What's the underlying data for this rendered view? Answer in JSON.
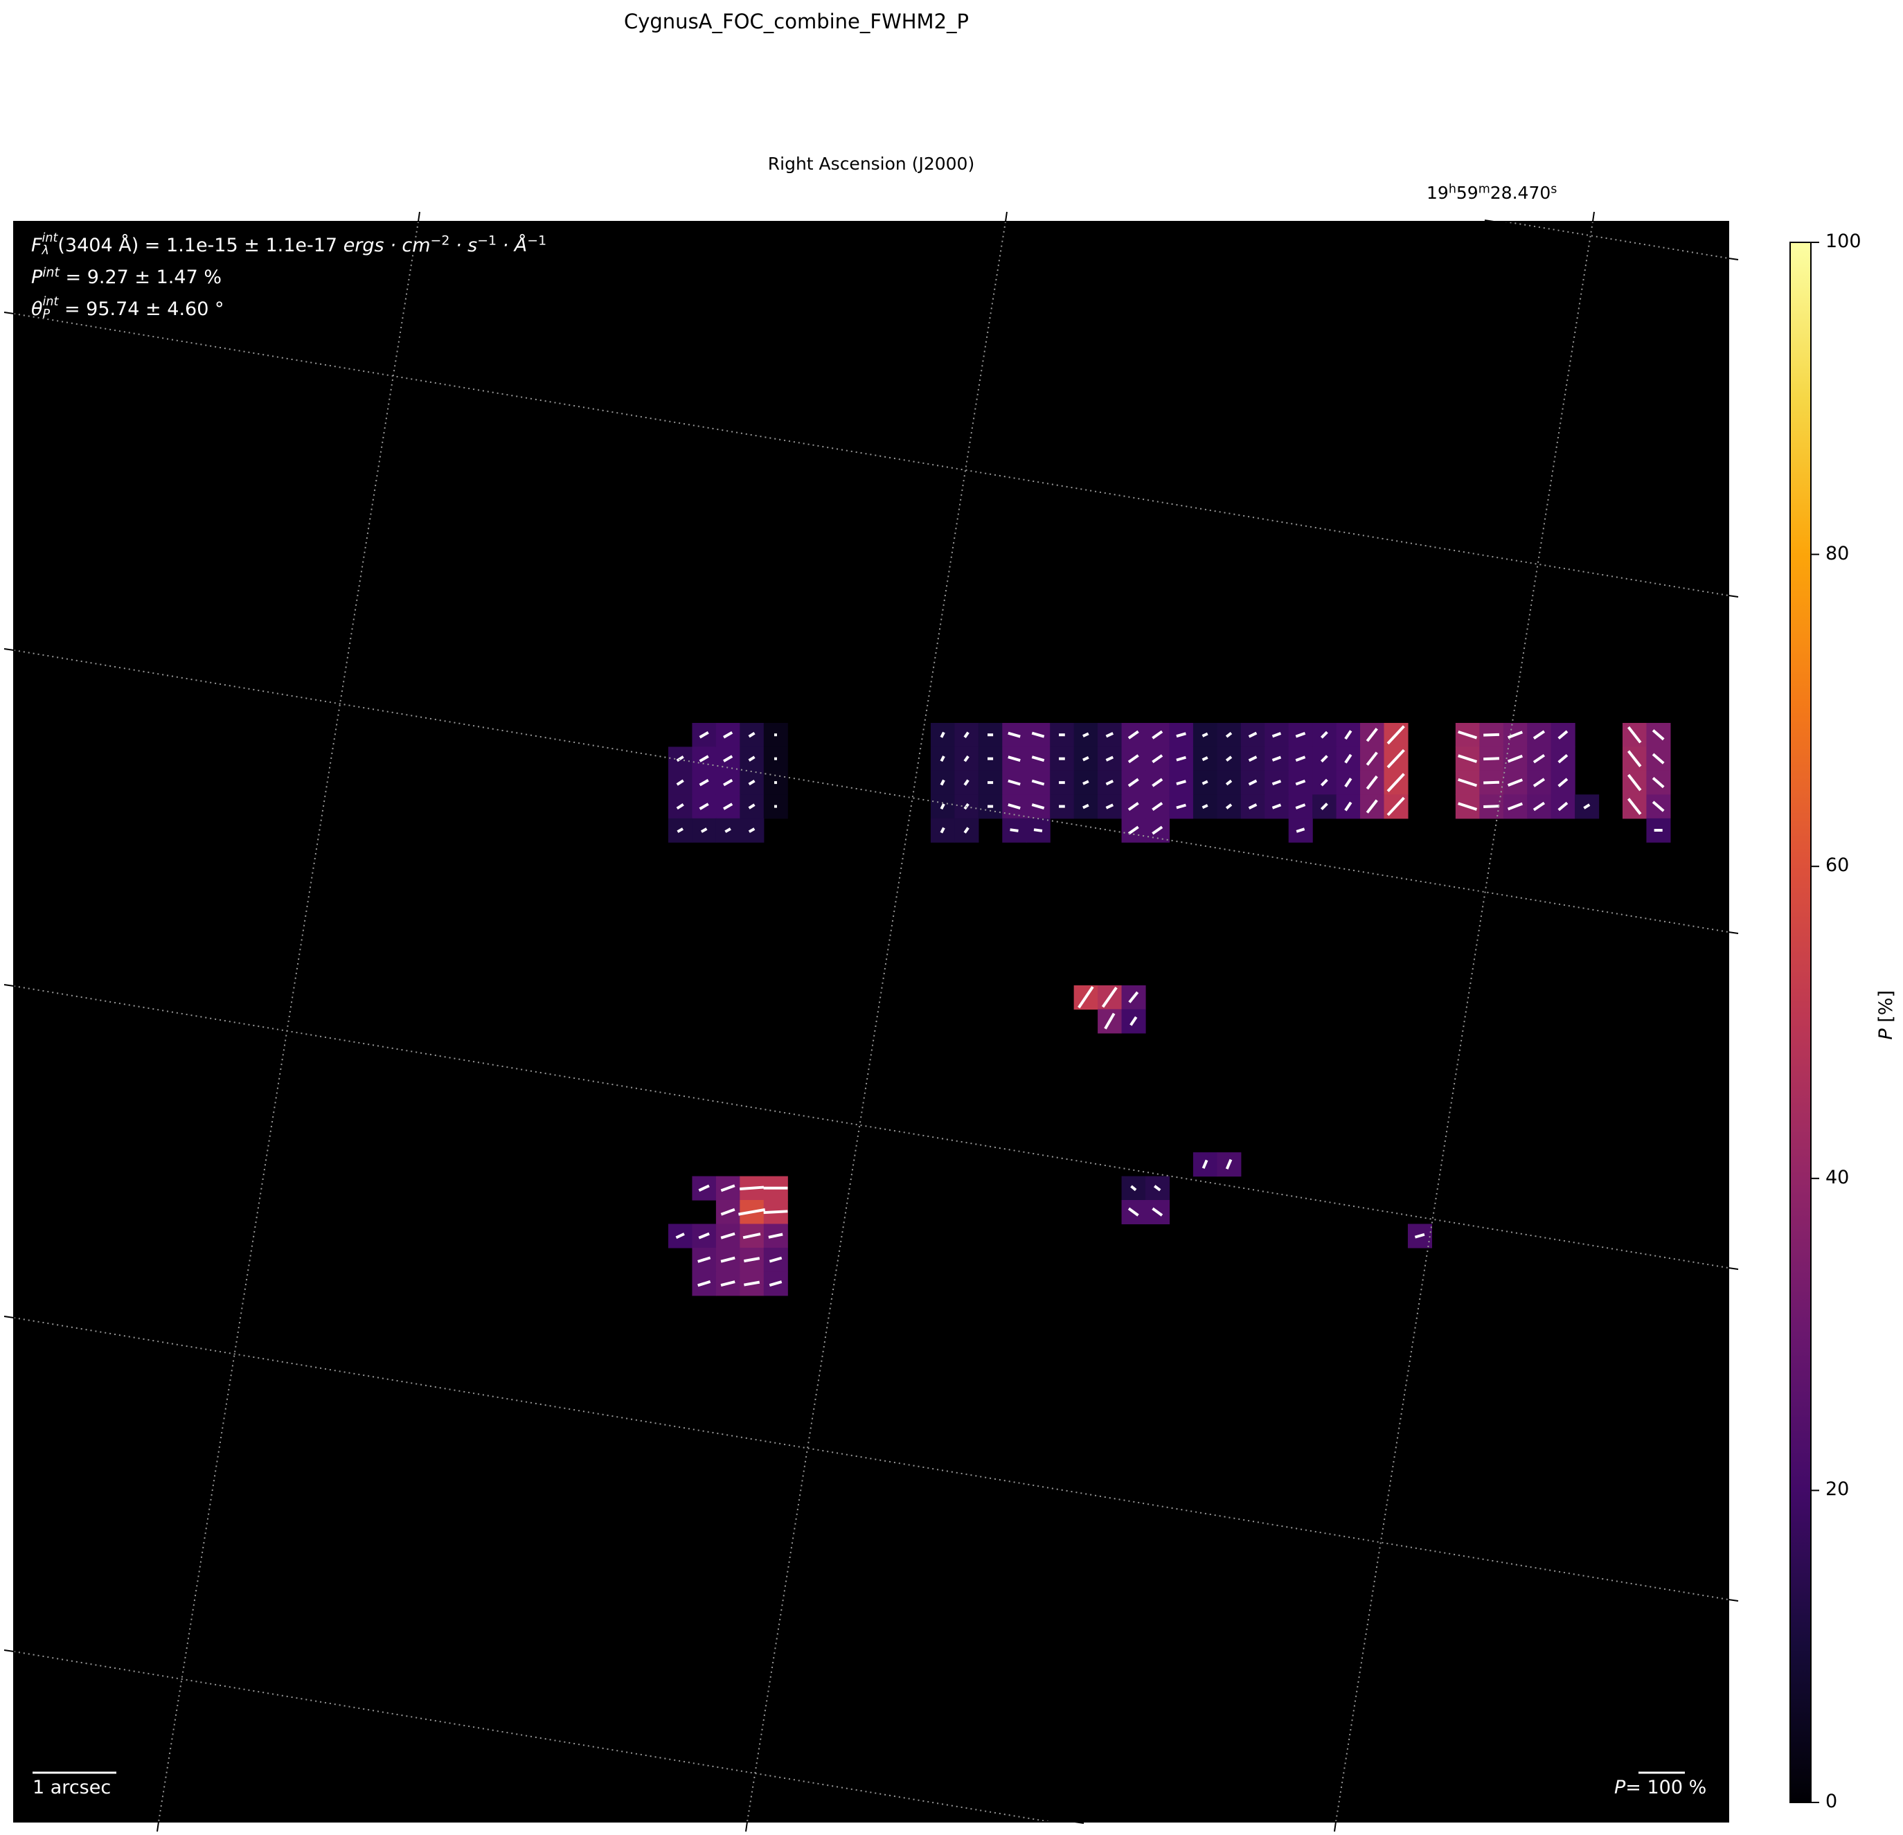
{
  "title": "CygnusA_FOC_combine_FWHM2_P",
  "axes": {
    "xlabel": "Right Ascension (J2000)",
    "x_tick_label": {
      "h": "19",
      "h_unit": "h",
      "m": "59",
      "m_unit": "m",
      "s": "28.470",
      "s_unit": "s"
    },
    "grid": "dotted-gray",
    "background": "#000000"
  },
  "info": {
    "flux": {
      "symbol": "F",
      "sup": "int",
      "sub": "λ",
      "text": "(3404 Å) = 1.1e-15 ± 1.1e-17 ",
      "units": "ergs · cm",
      "exp1": "−2",
      "s": " · s",
      "exp2": "−1",
      "A": " · Å",
      "exp3": "−1"
    },
    "pol": {
      "symbol": "P",
      "sup": "int",
      "text": " = 9.27 ± 1.47 %"
    },
    "angle": {
      "symbol": "θ",
      "sup": "int",
      "sub": "P",
      "text": " = 95.74 ± 4.60 °"
    }
  },
  "scalebar_left": "1 arcsec",
  "scalebar_right": {
    "symbol": "P",
    "text": "= 100 %"
  },
  "colorbar": {
    "label_symbol": "P",
    "label_unit": " [%]",
    "colormap": "inferno",
    "range": [
      0,
      100
    ],
    "ticks": [
      "0",
      "20",
      "40",
      "60",
      "80",
      "100"
    ]
  },
  "chart_data": {
    "type": "heatmap",
    "title": "CygnusA_FOC_combine_FWHM2_P",
    "xlabel": "Right Ascension (J2000)",
    "colorbar_label": "P [%]",
    "value_range": [
      0,
      100
    ],
    "vector_overlay": "polarization vectors (white), length scale P = 100 %",
    "cell_fields": [
      "pixel_col",
      "pixel_row",
      "P_percent",
      "vector_angle_deg",
      "vector_P_percent"
    ],
    "cells": [
      [
        1,
        0,
        18,
        30,
        21
      ],
      [
        2,
        0,
        20,
        30,
        21
      ],
      [
        3,
        0,
        12,
        32,
        14
      ],
      [
        4,
        0,
        4,
        0,
        3
      ],
      [
        0,
        1,
        16,
        33,
        16
      ],
      [
        1,
        1,
        20,
        30,
        21
      ],
      [
        2,
        1,
        20,
        30,
        21
      ],
      [
        3,
        1,
        12,
        32,
        14
      ],
      [
        4,
        1,
        4,
        0,
        3
      ],
      [
        0,
        2,
        16,
        33,
        16
      ],
      [
        1,
        2,
        20,
        30,
        21
      ],
      [
        2,
        2,
        20,
        30,
        21
      ],
      [
        3,
        2,
        12,
        32,
        14
      ],
      [
        4,
        2,
        4,
        0,
        3
      ],
      [
        0,
        3,
        16,
        33,
        16
      ],
      [
        1,
        3,
        20,
        30,
        21
      ],
      [
        2,
        3,
        20,
        30,
        21
      ],
      [
        3,
        3,
        12,
        32,
        14
      ],
      [
        4,
        3,
        4,
        0,
        3
      ],
      [
        0,
        4,
        12,
        30,
        13
      ],
      [
        1,
        4,
        12,
        30,
        13
      ],
      [
        2,
        4,
        12,
        30,
        13
      ],
      [
        3,
        4,
        12,
        30,
        13
      ],
      [
        11,
        0,
        11,
        63,
        12
      ],
      [
        12,
        0,
        13,
        55,
        13
      ],
      [
        13,
        0,
        11,
        0,
        12
      ],
      [
        14,
        0,
        24,
        -16,
        27
      ],
      [
        15,
        0,
        24,
        -16,
        27
      ],
      [
        16,
        0,
        13,
        0,
        13
      ],
      [
        17,
        0,
        10,
        25,
        13
      ],
      [
        18,
        0,
        13,
        25,
        16
      ],
      [
        19,
        0,
        23,
        35,
        25
      ],
      [
        20,
        0,
        23,
        35,
        25
      ],
      [
        21,
        0,
        20,
        16,
        21
      ],
      [
        22,
        0,
        10,
        25,
        12
      ],
      [
        23,
        0,
        11,
        38,
        13
      ],
      [
        24,
        0,
        15,
        26,
        18
      ],
      [
        25,
        0,
        17,
        20,
        19
      ],
      [
        26,
        0,
        19,
        20,
        21
      ],
      [
        27,
        0,
        19,
        45,
        17
      ],
      [
        28,
        0,
        21,
        56,
        21
      ],
      [
        29,
        0,
        34,
        52,
        34
      ],
      [
        30,
        0,
        52,
        47,
        51
      ],
      [
        11,
        1,
        11,
        63,
        12
      ],
      [
        12,
        1,
        13,
        55,
        13
      ],
      [
        13,
        1,
        11,
        0,
        12
      ],
      [
        14,
        1,
        24,
        -16,
        27
      ],
      [
        15,
        1,
        24,
        -16,
        27
      ],
      [
        16,
        1,
        13,
        0,
        13
      ],
      [
        17,
        1,
        10,
        25,
        13
      ],
      [
        18,
        1,
        13,
        25,
        16
      ],
      [
        19,
        1,
        23,
        35,
        25
      ],
      [
        20,
        1,
        23,
        35,
        25
      ],
      [
        21,
        1,
        20,
        16,
        21
      ],
      [
        22,
        1,
        10,
        25,
        12
      ],
      [
        23,
        1,
        11,
        38,
        13
      ],
      [
        24,
        1,
        15,
        26,
        18
      ],
      [
        25,
        1,
        17,
        20,
        19
      ],
      [
        26,
        1,
        19,
        20,
        21
      ],
      [
        27,
        1,
        19,
        45,
        17
      ],
      [
        28,
        1,
        21,
        56,
        21
      ],
      [
        29,
        1,
        34,
        52,
        34
      ],
      [
        30,
        1,
        52,
        47,
        51
      ],
      [
        11,
        2,
        11,
        63,
        12
      ],
      [
        12,
        2,
        13,
        55,
        13
      ],
      [
        13,
        2,
        11,
        0,
        12
      ],
      [
        14,
        2,
        24,
        -16,
        27
      ],
      [
        15,
        2,
        24,
        -16,
        27
      ],
      [
        16,
        2,
        13,
        0,
        13
      ],
      [
        17,
        2,
        10,
        25,
        13
      ],
      [
        18,
        2,
        13,
        25,
        16
      ],
      [
        19,
        2,
        23,
        35,
        25
      ],
      [
        20,
        2,
        23,
        35,
        25
      ],
      [
        21,
        2,
        20,
        16,
        21
      ],
      [
        22,
        2,
        10,
        25,
        12
      ],
      [
        23,
        2,
        11,
        38,
        13
      ],
      [
        24,
        2,
        15,
        26,
        18
      ],
      [
        25,
        2,
        17,
        20,
        19
      ],
      [
        26,
        2,
        19,
        20,
        21
      ],
      [
        27,
        2,
        19,
        45,
        17
      ],
      [
        28,
        2,
        21,
        56,
        21
      ],
      [
        29,
        2,
        34,
        52,
        34
      ],
      [
        30,
        2,
        52,
        47,
        51
      ],
      [
        11,
        3,
        11,
        63,
        12
      ],
      [
        12,
        3,
        13,
        55,
        13
      ],
      [
        13,
        3,
        11,
        0,
        12
      ],
      [
        14,
        3,
        24,
        -16,
        27
      ],
      [
        15,
        3,
        24,
        -16,
        27
      ],
      [
        16,
        3,
        13,
        0,
        13
      ],
      [
        17,
        3,
        10,
        25,
        13
      ],
      [
        18,
        3,
        13,
        25,
        16
      ],
      [
        19,
        3,
        23,
        35,
        25
      ],
      [
        20,
        3,
        23,
        35,
        25
      ],
      [
        21,
        3,
        20,
        16,
        21
      ],
      [
        22,
        3,
        10,
        25,
        12
      ],
      [
        23,
        3,
        11,
        38,
        13
      ],
      [
        24,
        3,
        15,
        26,
        18
      ],
      [
        25,
        3,
        17,
        20,
        19
      ],
      [
        26,
        3,
        19,
        20,
        21
      ],
      [
        27,
        3,
        14,
        45,
        17
      ],
      [
        28,
        3,
        21,
        56,
        21
      ],
      [
        29,
        3,
        34,
        52,
        34
      ],
      [
        30,
        3,
        50,
        47,
        51
      ],
      [
        11,
        4,
        12,
        63,
        12
      ],
      [
        12,
        4,
        12,
        55,
        13
      ],
      [
        14,
        4,
        17,
        -8,
        18
      ],
      [
        15,
        4,
        17,
        -8,
        18
      ],
      [
        19,
        4,
        23,
        35,
        25
      ],
      [
        20,
        4,
        23,
        35,
        25
      ],
      [
        26,
        4,
        19,
        18,
        18
      ],
      [
        33,
        0,
        42,
        -18,
        42
      ],
      [
        34,
        0,
        35,
        2,
        34
      ],
      [
        35,
        0,
        32,
        21,
        33
      ],
      [
        36,
        0,
        27,
        34,
        27
      ],
      [
        37,
        0,
        23,
        40,
        24
      ],
      [
        33,
        1,
        43,
        -18,
        42
      ],
      [
        34,
        1,
        35,
        2,
        34
      ],
      [
        35,
        1,
        32,
        21,
        33
      ],
      [
        36,
        1,
        27,
        34,
        27
      ],
      [
        37,
        1,
        23,
        40,
        24
      ],
      [
        33,
        2,
        43,
        -18,
        42
      ],
      [
        34,
        2,
        35,
        2,
        34
      ],
      [
        35,
        2,
        32,
        21,
        33
      ],
      [
        36,
        2,
        27,
        34,
        27
      ],
      [
        37,
        2,
        23,
        40,
        24
      ],
      [
        33,
        3,
        43,
        -18,
        42
      ],
      [
        34,
        3,
        33,
        2,
        34
      ],
      [
        35,
        3,
        30,
        21,
        33
      ],
      [
        36,
        3,
        26,
        34,
        27
      ],
      [
        37,
        3,
        23,
        40,
        24
      ],
      [
        38,
        3,
        13,
        32,
        14
      ],
      [
        40,
        0,
        42,
        -52,
        42
      ],
      [
        41,
        0,
        34,
        -41,
        30
      ],
      [
        40,
        1,
        43,
        -52,
        42
      ],
      [
        41,
        1,
        34,
        -41,
        30
      ],
      [
        40,
        2,
        43,
        -52,
        42
      ],
      [
        41,
        2,
        34,
        -41,
        30
      ],
      [
        40,
        3,
        43,
        -52,
        42
      ],
      [
        41,
        3,
        30,
        -41,
        30
      ],
      [
        41,
        4,
        19,
        0,
        18
      ],
      [
        17,
        11,
        52,
        56,
        54
      ],
      [
        18,
        11,
        48,
        55,
        51
      ],
      [
        19,
        11,
        26,
        51,
        28
      ],
      [
        18,
        12,
        33,
        60,
        38
      ],
      [
        19,
        12,
        20,
        56,
        21
      ],
      [
        22,
        18,
        20,
        67,
        19
      ],
      [
        23,
        18,
        22,
        67,
        22
      ],
      [
        19,
        19,
        12,
        -40,
        13
      ],
      [
        20,
        19,
        14,
        -37,
        15
      ],
      [
        19,
        20,
        23,
        -36,
        25
      ],
      [
        20,
        20,
        23,
        -36,
        25
      ],
      [
        31,
        21,
        22,
        16,
        21
      ],
      [
        1,
        19,
        23,
        25,
        24
      ],
      [
        2,
        19,
        30,
        20,
        31
      ],
      [
        3,
        19,
        50,
        4,
        52
      ],
      [
        4,
        19,
        50,
        0,
        52
      ],
      [
        2,
        20,
        31,
        20,
        31
      ],
      [
        3,
        20,
        58,
        10,
        58
      ],
      [
        4,
        20,
        50,
        3,
        52
      ],
      [
        0,
        21,
        20,
        25,
        19
      ],
      [
        1,
        21,
        23,
        22,
        24
      ],
      [
        2,
        21,
        29,
        17,
        31
      ],
      [
        3,
        21,
        37,
        12,
        38
      ],
      [
        4,
        21,
        30,
        12,
        31
      ],
      [
        1,
        22,
        26,
        17,
        28
      ],
      [
        2,
        22,
        29,
        14,
        31
      ],
      [
        3,
        22,
        32,
        10,
        34
      ],
      [
        4,
        22,
        25,
        16,
        27
      ],
      [
        1,
        23,
        26,
        17,
        28
      ],
      [
        2,
        23,
        29,
        14,
        31
      ],
      [
        3,
        23,
        32,
        10,
        34
      ],
      [
        4,
        23,
        25,
        16,
        27
      ]
    ]
  }
}
